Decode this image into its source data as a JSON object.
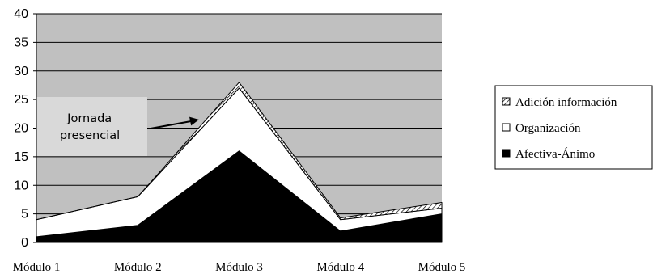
{
  "chart_data": {
    "type": "area",
    "stacked": true,
    "categories": [
      "Módulo 1",
      "Módulo 2",
      "Módulo 3",
      "Módulo 4",
      "Módulo 5"
    ],
    "series": [
      {
        "name": "Afectiva-Ánimo",
        "values": [
          1,
          3,
          16,
          2,
          5
        ],
        "fill": "#000000"
      },
      {
        "name": "Organización",
        "values": [
          3,
          5,
          11,
          2,
          1
        ],
        "fill": "#ffffff"
      },
      {
        "name": "Adición información",
        "values": [
          0,
          0,
          1,
          0.3,
          1
        ],
        "fill": "hatched"
      }
    ],
    "ylim": [
      0,
      40
    ],
    "yticks": [
      "0",
      "5",
      "10",
      "15",
      "20",
      "25",
      "30",
      "35",
      "40"
    ],
    "grid": true,
    "legend_position": "right",
    "plot_background": "#c0c0c0",
    "annotation": {
      "lines": [
        "Jornada",
        "presencial"
      ],
      "points_to": "Módulo 3"
    }
  }
}
